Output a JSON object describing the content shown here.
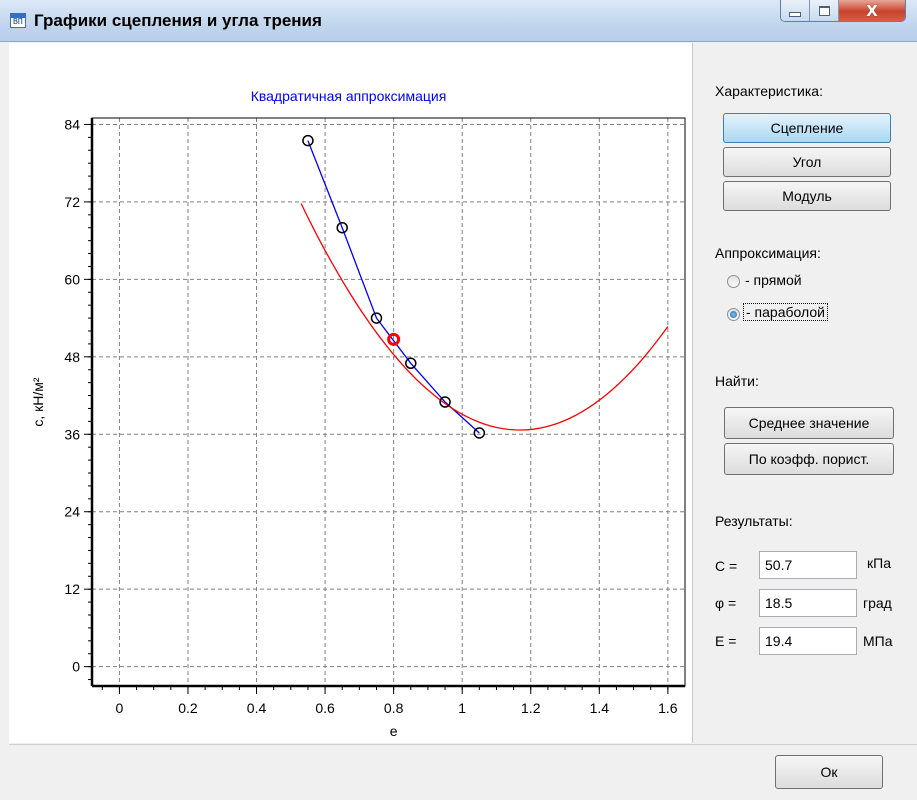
{
  "window": {
    "title": "Графики сцепления и угла трения",
    "icon": "app-icon",
    "icon_glyph": "ВП",
    "close_label": "X"
  },
  "right": {
    "characteristic_label": "Характеристика:",
    "btn_cohesion": "Сцепление",
    "btn_angle": "Угол",
    "btn_modulus": "Модуль",
    "approx_label": "Аппроксимация:",
    "radio_line": "- прямой",
    "radio_parabola": "- параболой",
    "find_label": "Найти:",
    "btn_mean": "Среднее значение",
    "btn_porosity": "По коэфф. порист.",
    "results_label": "Результаты:",
    "c_label": "C =",
    "c_value": "50.7",
    "c_unit": "кПа",
    "phi_label": "φ =",
    "phi_value": "18.5",
    "phi_unit": "град",
    "e_label": "E =",
    "e_value": "19.4",
    "e_unit": "МПа"
  },
  "footer": {
    "ok_label": "Ок"
  },
  "colors": {
    "accent": "#3c7fb1",
    "fit_curve": "#ff0000",
    "polyline": "#0000ff",
    "title_text": "#0000ff"
  },
  "chart_data": {
    "type": "scatter",
    "title": "Квадратичная аппроксимация",
    "xlabel": "e",
    "ylabel": "с, кН/м²",
    "xlim": [
      -0.08,
      1.65
    ],
    "ylim": [
      -3,
      85
    ],
    "x_ticks": [
      "0",
      "0.2",
      "0.4",
      "0.6",
      "0.8",
      "1",
      "1.2",
      "1.4",
      "1.6"
    ],
    "y_ticks": [
      "0",
      "12",
      "24",
      "36",
      "48",
      "60",
      "72",
      "84"
    ],
    "grid": true,
    "series": [
      {
        "kind": "markers",
        "x": [
          0.55,
          0.65,
          0.75,
          0.85,
          0.95,
          1.05
        ],
        "y": [
          81.5,
          68.0,
          54.0,
          47.0,
          41.0,
          36.2
        ]
      },
      {
        "kind": "polyline",
        "x": [
          0.55,
          0.65,
          0.75,
          0.85,
          0.95,
          1.05
        ],
        "y": [
          81.5,
          68.0,
          54.0,
          47.0,
          41.0,
          36.2
        ]
      },
      {
        "kind": "quadratic-fit",
        "coefficients": [
          154.2,
          -201.2,
          86.1
        ],
        "x_range": [
          0.53,
          1.6
        ]
      },
      {
        "kind": "highlight-point",
        "x": [
          0.8
        ],
        "y": [
          50.7
        ]
      }
    ]
  }
}
